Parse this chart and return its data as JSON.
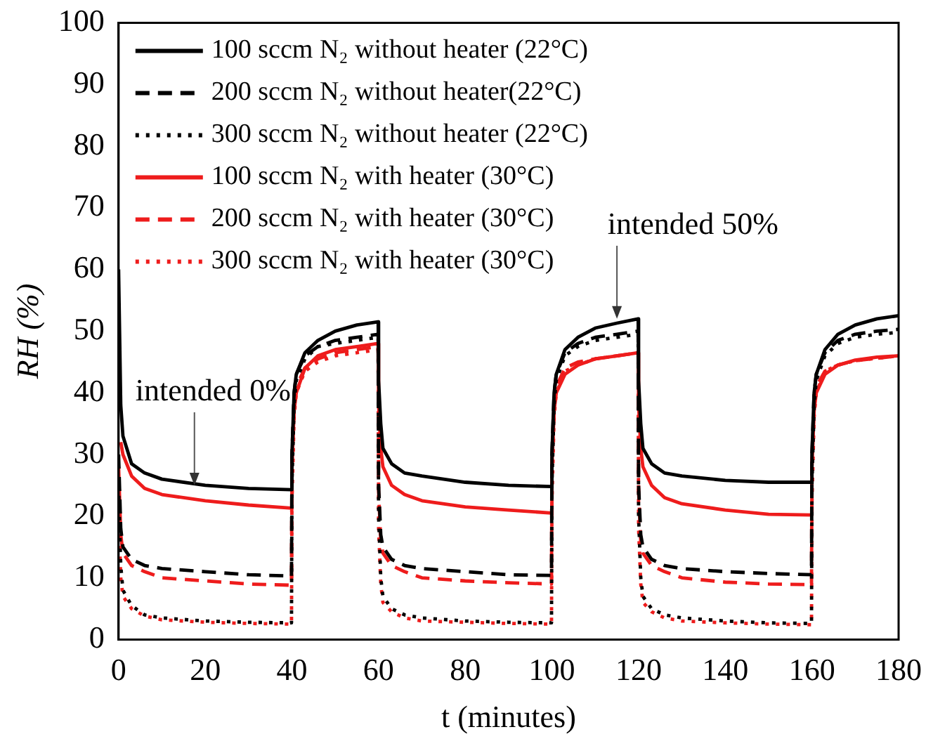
{
  "chart_data": {
    "type": "line",
    "xlabel": "t (minutes)",
    "ylabel": "RH (%)",
    "xlim": [
      0,
      180
    ],
    "xticks": [
      0,
      20,
      40,
      60,
      80,
      100,
      120,
      140,
      160,
      180
    ],
    "ylim": [
      0,
      100
    ],
    "yticks": [
      0,
      10,
      20,
      30,
      40,
      50,
      60,
      70,
      80,
      90,
      100
    ],
    "grid": false,
    "legend": "top left",
    "marker": "none",
    "x": [
      0,
      0.5,
      1,
      3,
      6,
      10,
      20,
      30,
      39.9,
      40,
      40.5,
      41,
      43,
      46,
      50,
      55,
      59.9,
      60,
      60.5,
      61,
      63,
      66,
      70,
      80,
      90,
      99.9,
      100,
      100.5,
      101,
      103,
      106,
      110,
      115,
      119.9,
      120,
      120.5,
      121,
      123,
      126,
      130,
      140,
      150,
      159.9,
      160,
      160.5,
      161,
      163,
      166,
      170,
      175,
      180
    ],
    "series": [
      {
        "name": "100 sccm N₂ without heater (22°C)",
        "color": "#000000",
        "line_style": "solid",
        "values": [
          60,
          38,
          33,
          28.5,
          27,
          26,
          25,
          24.5,
          24.3,
          30,
          40,
          43,
          46.5,
          48.5,
          50,
          51,
          51.5,
          42,
          35,
          31,
          28.5,
          27,
          26.5,
          25.5,
          25,
          24.8,
          30,
          40,
          43,
          47,
          49,
          50.5,
          51.3,
          52,
          42,
          35,
          31,
          28.5,
          27,
          26.5,
          25.8,
          25.5,
          25.5,
          30,
          40,
          43,
          47,
          49.5,
          51,
          52,
          52.5
        ]
      },
      {
        "name": "200 sccm N₂ without heater(22°C)",
        "color": "#000000",
        "line_style": "dashed",
        "values": [
          30,
          18,
          15,
          13,
          12,
          11.5,
          11,
          10.5,
          10.3,
          30,
          40,
          43,
          46,
          47.5,
          48.5,
          49,
          49.5,
          25,
          17,
          15,
          13,
          12,
          11.5,
          11,
          10.5,
          10.4,
          30,
          40,
          43,
          46.5,
          48,
          49,
          49.5,
          50,
          25,
          17,
          15,
          13,
          12,
          11.5,
          11,
          10.7,
          10.5,
          30,
          40,
          43,
          46.5,
          48.5,
          49.5,
          50,
          50.3
        ]
      },
      {
        "name": "300 sccm N₂ without heater (22°C)",
        "color": "#000000",
        "line_style": "dotted",
        "values": [
          25,
          12,
          8,
          5.5,
          4,
          3.5,
          3,
          2.8,
          2.7,
          25,
          38,
          42,
          45.5,
          47.5,
          48,
          48.5,
          49,
          20,
          10,
          7,
          5,
          4,
          3.5,
          3,
          2.8,
          2.7,
          25,
          38,
          42,
          46,
          47.5,
          48.5,
          49,
          49.5,
          20,
          10,
          7,
          5,
          4,
          3.5,
          3,
          2.7,
          2.6,
          25,
          38,
          42,
          46,
          48,
          49,
          49.5,
          49.8
        ]
      },
      {
        "name": "100 sccm N₂ with heater (30°C)",
        "color": "#ee1c1c",
        "line_style": "solid",
        "values": [
          null,
          32,
          30,
          26.5,
          24.5,
          23.5,
          22.5,
          21.8,
          21.3,
          28,
          37,
          40,
          44,
          46,
          47,
          47.5,
          48,
          38,
          31,
          28,
          25,
          23.5,
          22.5,
          21.5,
          21,
          20.5,
          28,
          37,
          40,
          43,
          44.5,
          45.5,
          46,
          46.5,
          38,
          31,
          28,
          25,
          23,
          22,
          21,
          20.3,
          20.2,
          28,
          37,
          40,
          43,
          44.5,
          45.3,
          45.8,
          46
        ]
      },
      {
        "name": "200 sccm N₂ with heater (30°C)",
        "color": "#ee1c1c",
        "line_style": "dashed",
        "values": [
          28,
          17,
          14,
          12,
          11,
          10,
          9.5,
          9,
          8.8,
          28,
          38,
          41,
          44,
          45.5,
          46.5,
          47,
          47.5,
          24,
          16,
          14,
          12,
          11,
          10,
          9.5,
          9.2,
          9,
          28,
          38,
          41,
          44,
          45,
          45.5,
          46,
          46.5,
          24,
          16,
          14,
          12,
          11,
          10,
          9.3,
          9,
          8.9,
          28,
          38,
          41,
          43.5,
          44.5,
          45.2,
          45.6,
          46
        ]
      },
      {
        "name": "300 sccm N₂ with heater (30°C)",
        "color": "#ee1c1c",
        "line_style": "dotted",
        "values": [
          22,
          10,
          7,
          5,
          3.8,
          3.2,
          2.8,
          2.6,
          2.5,
          22,
          36,
          40,
          43.5,
          45,
          46,
          46.5,
          47,
          18,
          9,
          6,
          4.5,
          3.5,
          3,
          2.8,
          2.6,
          2.5,
          22,
          36,
          40,
          43.5,
          44.5,
          45.5,
          46,
          46.5,
          18,
          9,
          6,
          4.5,
          3.5,
          3,
          2.7,
          2.5,
          2.4,
          22,
          36,
          40,
          43.5,
          44.5,
          45.2,
          45.6,
          46
        ]
      }
    ],
    "annotations": [
      {
        "text": "intended 0%",
        "x": 17.5,
        "y": 25
      },
      {
        "text": "intended 50%",
        "x": 115,
        "y": 52
      }
    ]
  }
}
